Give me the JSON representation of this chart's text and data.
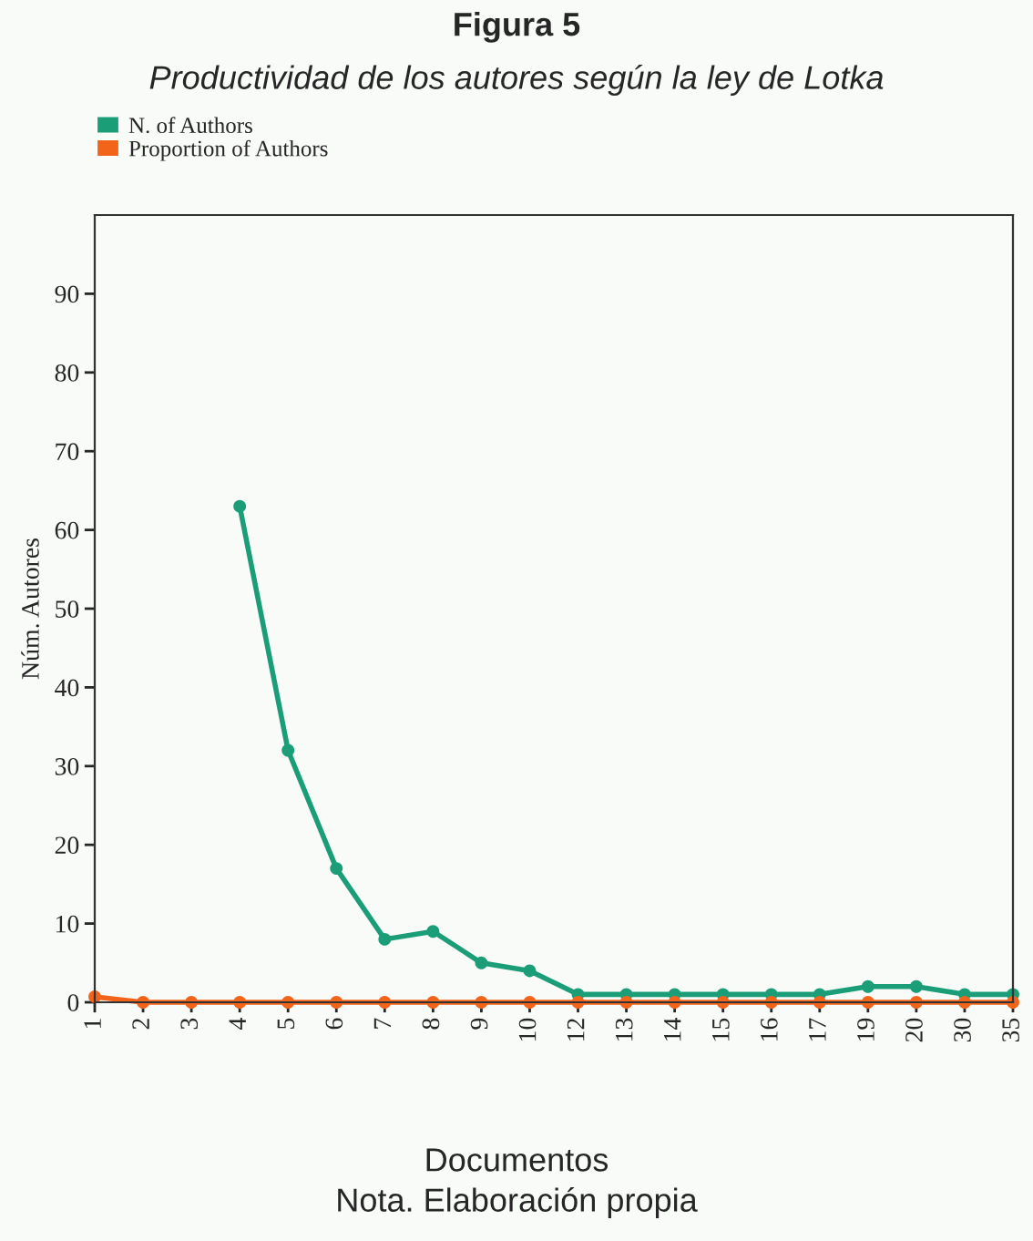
{
  "chart_data": {
    "type": "line",
    "title": "Figura 5",
    "subtitle": "Productividad de los autores según la ley de Lotka",
    "xlabel": "Documentos",
    "ylabel": "Núm. Autores",
    "annotations": [
      "Nota. Elaboración propia"
    ],
    "categories": [
      "1",
      "2",
      "3",
      "4",
      "5",
      "6",
      "7",
      "8",
      "9",
      "10",
      "12",
      "13",
      "14",
      "15",
      "16",
      "17",
      "19",
      "20",
      "30",
      "35"
    ],
    "series": [
      {
        "name": "N. of Authors",
        "color": "#1b9e77",
        "values": [
          null,
          null,
          null,
          63,
          32,
          17,
          8,
          9,
          5,
          4,
          1,
          1,
          1,
          1,
          1,
          1,
          2,
          2,
          1,
          1
        ]
      },
      {
        "name": "Proportion of Authors",
        "color": "#f26419",
        "values": [
          0.7,
          0,
          0,
          0,
          0,
          0,
          0,
          0,
          0,
          0,
          0,
          0,
          0,
          0,
          0,
          0,
          0,
          0,
          0,
          0
        ]
      }
    ],
    "ylim": [
      0,
      100
    ],
    "yticks": [
      0,
      10,
      20,
      30,
      40,
      50,
      60,
      70,
      80,
      90
    ],
    "grid": false,
    "legend": "top left",
    "marker": "circle",
    "line_style": "solid"
  }
}
